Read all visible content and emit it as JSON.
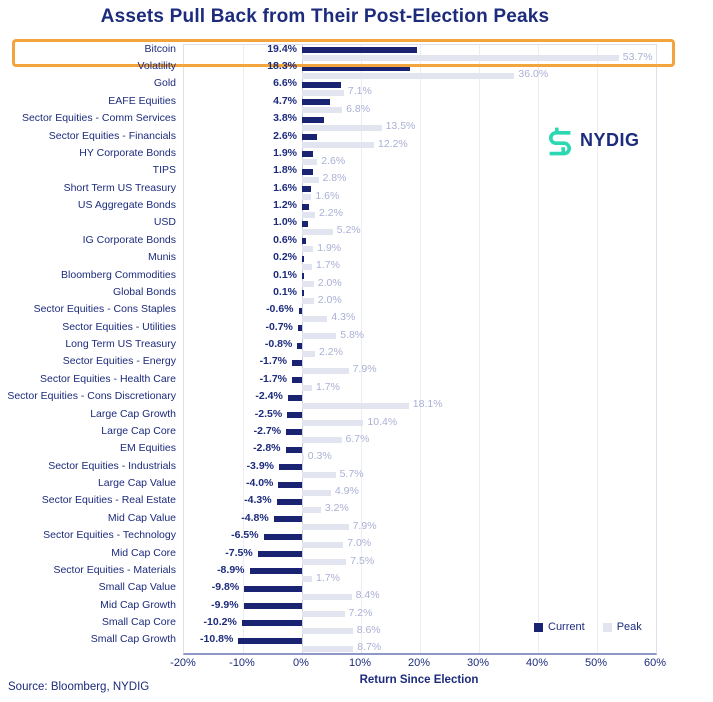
{
  "title": "Assets Pull Back from Their Post-Election Peaks",
  "source": "Source: Bloomberg, NYDIG",
  "logo": {
    "text": "NYDIG"
  },
  "legend": {
    "current": "Current",
    "peak": "Peak"
  },
  "colors": {
    "navy_text": "#1C2B7C",
    "current_bar": "#1A2272",
    "peak_bar": "#E2E4F0",
    "peak_label": "#AAB0D4",
    "gridline": "#EBECF4",
    "zero_line": "#C8CCE0",
    "plot_border": "#DDDFEA",
    "axis_line": "#8F97C6",
    "highlight_orange": "#F2A43D",
    "logo_teal": "#2BD8B1"
  },
  "chart_data": {
    "type": "bar",
    "orientation": "horizontal",
    "title": "Assets Pull Back from Their Post-Election Peaks",
    "xlabel": "Return Since Election",
    "xlim": [
      -20,
      60
    ],
    "xticks": [
      -20,
      -10,
      0,
      10,
      20,
      30,
      40,
      50,
      60
    ],
    "xtick_labels": [
      "-20%",
      "-10%",
      "0%",
      "10%",
      "20%",
      "30%",
      "40%",
      "50%",
      "60%"
    ],
    "grid": true,
    "legend_position": "bottom-right",
    "value_label_format": "0.0%",
    "highlight": {
      "category": "Bitcoin"
    },
    "categories": [
      "Bitcoin",
      "Volatility",
      "Gold",
      "EAFE Equities",
      "Sector Equities - Comm Services",
      "Sector Equities - Financials",
      "HY Corporate Bonds",
      "TIPS",
      "Short Term US Treasury",
      "US Aggregate Bonds",
      "USD",
      "IG Corporate Bonds",
      "Munis",
      "Bloomberg Commodities",
      "Global Bonds",
      "Sector Equities - Cons Staples",
      "Sector Equities - Utilities",
      "Long Term US Treasury",
      "Sector Equities - Energy",
      "Sector Equities - Health Care",
      "Sector Equities - Cons Discretionary",
      "Large Cap Growth",
      "Large Cap Core",
      "EM Equities",
      "Sector Equities - Industrials",
      "Large Cap Value",
      "Sector Equities - Real Estate",
      "Mid Cap Value",
      "Sector Equities - Technology",
      "Mid Cap Core",
      "Sector Equities - Materials",
      "Small Cap Value",
      "Mid Cap Growth",
      "Small Cap Core",
      "Small Cap Growth"
    ],
    "series": [
      {
        "name": "Current",
        "values": [
          19.4,
          18.3,
          6.6,
          4.7,
          3.8,
          2.6,
          1.9,
          1.8,
          1.6,
          1.2,
          1.0,
          0.6,
          0.2,
          0.1,
          0.1,
          -0.6,
          -0.7,
          -0.8,
          -1.7,
          -1.7,
          -2.4,
          -2.5,
          -2.7,
          -2.8,
          -3.9,
          -4.0,
          -4.3,
          -4.8,
          -6.5,
          -7.5,
          -8.9,
          -9.8,
          -9.9,
          -10.2,
          -10.8
        ]
      },
      {
        "name": "Peak",
        "values": [
          53.7,
          36.0,
          7.1,
          6.8,
          13.5,
          12.2,
          2.6,
          2.8,
          1.6,
          2.2,
          5.2,
          1.9,
          1.7,
          2.0,
          2.0,
          4.3,
          5.8,
          2.2,
          7.9,
          1.7,
          18.1,
          10.4,
          6.7,
          0.3,
          5.7,
          4.9,
          3.2,
          7.9,
          7.0,
          7.5,
          1.7,
          8.4,
          7.2,
          8.6,
          8.7
        ]
      }
    ]
  }
}
